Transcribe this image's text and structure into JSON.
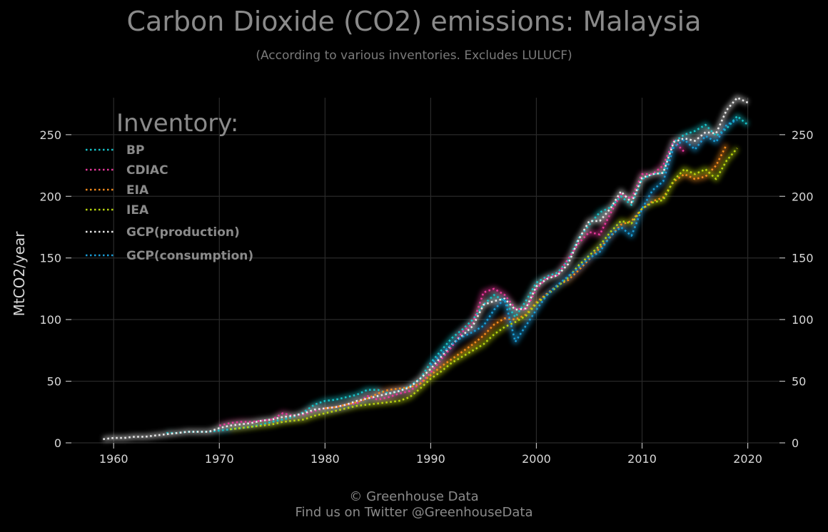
{
  "footer": {
    "line1": "© Greenhouse Data",
    "line2": "Find us on Twitter @GreenhouseData"
  },
  "chart_data": {
    "type": "line",
    "title": "Carbon Dioxide (CO2) emissions: Malaysia",
    "subtitle": "(According to various inventories. Excludes LULUCF)",
    "xlabel": "",
    "ylabel": "MtCO2/year",
    "xlim": [
      1956,
      2023
    ],
    "ylim": [
      0,
      280
    ],
    "x_ticks": [
      1960,
      1970,
      1980,
      1990,
      2000,
      2010,
      2020
    ],
    "y_ticks": [
      0,
      50,
      100,
      150,
      200,
      250
    ],
    "grid": true,
    "legend_title": "Inventory:",
    "legend_position": "top-left",
    "series": [
      {
        "name": "BP",
        "color": "#17c3c9",
        "x": [
          1965,
          1966,
          1967,
          1968,
          1969,
          1970,
          1971,
          1972,
          1973,
          1974,
          1975,
          1976,
          1977,
          1978,
          1979,
          1980,
          1981,
          1982,
          1983,
          1984,
          1985,
          1986,
          1987,
          1988,
          1989,
          1990,
          1991,
          1992,
          1993,
          1994,
          1995,
          1996,
          1997,
          1998,
          1999,
          2000,
          2001,
          2002,
          2003,
          2004,
          2005,
          2006,
          2007,
          2008,
          2009,
          2010,
          2011,
          2012,
          2013,
          2014,
          2015,
          2016,
          2017,
          2018,
          2019,
          2020
        ],
        "y": [
          8,
          8,
          9,
          9,
          9,
          10,
          11,
          12,
          13,
          15,
          17,
          19,
          21,
          25,
          31,
          34,
          35,
          37,
          39,
          43,
          43,
          40,
          42,
          46,
          52,
          65,
          75,
          85,
          92,
          100,
          112,
          120,
          115,
          102,
          115,
          130,
          135,
          138,
          148,
          166,
          177,
          187,
          191,
          200,
          193,
          214,
          218,
          219,
          244,
          250,
          253,
          258,
          249,
          255,
          265,
          258
        ]
      },
      {
        "name": "CDIAC",
        "color": "#e6389a",
        "x": [
          1970,
          1971,
          1972,
          1973,
          1974,
          1975,
          1976,
          1977,
          1978,
          1979,
          1980,
          1981,
          1982,
          1983,
          1984,
          1985,
          1986,
          1987,
          1988,
          1989,
          1990,
          1991,
          1992,
          1993,
          1994,
          1995,
          1996,
          1997,
          1998,
          1999,
          2000,
          2001,
          2002,
          2003,
          2004,
          2005,
          2006,
          2007,
          2008,
          2009,
          2010,
          2011,
          2012,
          2013,
          2014
        ],
        "y": [
          14,
          16,
          17,
          17,
          18,
          19,
          24,
          22,
          23,
          26,
          28,
          29,
          31,
          32,
          38,
          35,
          37,
          40,
          42,
          48,
          57,
          68,
          78,
          90,
          97,
          122,
          125,
          120,
          109,
          108,
          125,
          134,
          136,
          149,
          162,
          171,
          169,
          186,
          202,
          198,
          218,
          218,
          225,
          245,
          236
        ]
      },
      {
        "name": "EIA",
        "color": "#f28a1c",
        "x": [
          1980,
          1981,
          1982,
          1983,
          1984,
          1985,
          1986,
          1987,
          1988,
          1989,
          1990,
          1991,
          1992,
          1993,
          1994,
          1995,
          1996,
          1997,
          1998,
          1999,
          2000,
          2001,
          2002,
          2003,
          2004,
          2005,
          2006,
          2007,
          2008,
          2009,
          2010,
          2011,
          2012,
          2013,
          2014,
          2015,
          2016,
          2017,
          2018
        ],
        "y": [
          28,
          29,
          31,
          33,
          36,
          40,
          43,
          44,
          45,
          48,
          55,
          62,
          68,
          74,
          80,
          87,
          96,
          101,
          100,
          104,
          114,
          121,
          128,
          132,
          140,
          149,
          158,
          167,
          177,
          180,
          190,
          196,
          199,
          212,
          218,
          214,
          216,
          225,
          242
        ]
      },
      {
        "name": "IEA",
        "color": "#b8d40e",
        "x": [
          1971,
          1972,
          1973,
          1974,
          1975,
          1976,
          1977,
          1978,
          1979,
          1980,
          1981,
          1982,
          1983,
          1984,
          1985,
          1986,
          1987,
          1988,
          1989,
          1990,
          1991,
          1992,
          1993,
          1994,
          1995,
          1996,
          1997,
          1998,
          1999,
          2000,
          2001,
          2002,
          2003,
          2004,
          2005,
          2006,
          2007,
          2008,
          2009,
          2010,
          2011,
          2012,
          2013,
          2014,
          2015,
          2016,
          2017,
          2018,
          2019
        ],
        "y": [
          11,
          12,
          13,
          14,
          15,
          17,
          18,
          19,
          22,
          24,
          26,
          28,
          30,
          31,
          32,
          33,
          34,
          37,
          44,
          52,
          58,
          65,
          70,
          75,
          80,
          88,
          94,
          98,
          103,
          113,
          120,
          127,
          134,
          144,
          152,
          160,
          171,
          180,
          178,
          190,
          195,
          197,
          213,
          222,
          218,
          222,
          214,
          229,
          239
        ]
      },
      {
        "name": "GCP(production)",
        "color": "#e8e8e8",
        "x": [
          1959,
          1960,
          1961,
          1962,
          1963,
          1964,
          1965,
          1966,
          1967,
          1968,
          1969,
          1970,
          1971,
          1972,
          1973,
          1974,
          1975,
          1976,
          1977,
          1978,
          1979,
          1980,
          1981,
          1982,
          1983,
          1984,
          1985,
          1986,
          1987,
          1988,
          1989,
          1990,
          1991,
          1992,
          1993,
          1994,
          1995,
          1996,
          1997,
          1998,
          1999,
          2000,
          2001,
          2002,
          2003,
          2004,
          2005,
          2006,
          2007,
          2008,
          2009,
          2010,
          2011,
          2012,
          2013,
          2014,
          2015,
          2016,
          2017,
          2018,
          2019,
          2020
        ],
        "y": [
          3,
          4,
          4,
          5,
          5,
          6,
          7,
          8,
          9,
          9,
          9,
          12,
          14,
          15,
          16,
          18,
          19,
          21,
          22,
          24,
          27,
          28,
          29,
          31,
          34,
          36,
          38,
          40,
          42,
          45,
          52,
          60,
          70,
          80,
          87,
          95,
          112,
          115,
          117,
          108,
          109,
          127,
          133,
          136,
          145,
          165,
          180,
          180,
          190,
          204,
          195,
          215,
          218,
          219,
          244,
          247,
          245,
          252,
          251,
          270,
          280,
          276
        ]
      },
      {
        "name": "GCP(consumption)",
        "color": "#1a9bd6",
        "x": [
          1990,
          1991,
          1992,
          1993,
          1994,
          1995,
          1996,
          1997,
          1998,
          1999,
          2000,
          2001,
          2002,
          2003,
          2004,
          2005,
          2006,
          2007,
          2008,
          2009,
          2010,
          2011,
          2012,
          2013,
          2014,
          2015,
          2016,
          2017,
          2018,
          2019
        ],
        "y": [
          63,
          72,
          80,
          86,
          90,
          95,
          108,
          117,
          82,
          95,
          108,
          120,
          128,
          135,
          142,
          150,
          155,
          168,
          175,
          168,
          190,
          205,
          212,
          240,
          246,
          238,
          249,
          244,
          258,
          262
        ]
      }
    ]
  }
}
